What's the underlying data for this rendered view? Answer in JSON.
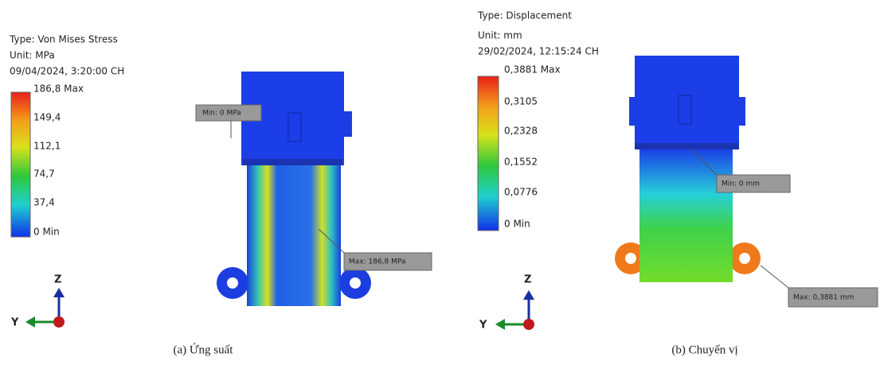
{
  "panels": [
    {
      "type_label": "Type: Von Mises Stress",
      "unit": "Unit: MPa",
      "timestamp": "09/04/2024, 3:20:00 CH",
      "legend": [
        "186,8 Max",
        "149,4",
        "112,1",
        "74,7",
        "37,4",
        "0 Min"
      ],
      "callouts": [
        "Min: 0 MPa",
        "Max: 186,8 MPa"
      ],
      "axes": [
        "Z",
        "Y"
      ],
      "caption": "(a) Ứng suất"
    },
    {
      "type_label": "Type: Displacement",
      "unit": "Unit: mm",
      "timestamp": "29/02/2024, 12:15:24 CH",
      "legend": [
        "0,3881 Max",
        "0,3105",
        "0,2328",
        "0,1552",
        "0,0776",
        "0 Min"
      ],
      "callouts": [
        "Min: 0 mm",
        "Max: 0,3881 mm"
      ],
      "axes": [
        "Z",
        "Y"
      ],
      "caption": "(b) Chuyển vị"
    }
  ]
}
